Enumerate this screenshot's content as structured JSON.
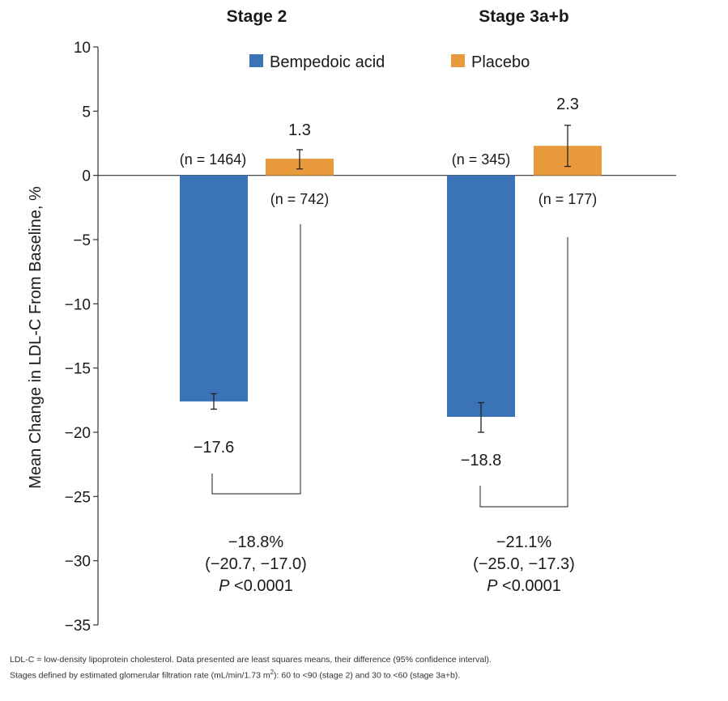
{
  "chart_data": {
    "type": "bar",
    "ylabel": "Mean Change in LDL-C From Baseline, %",
    "ylim": [
      -35,
      10
    ],
    "yticks": [
      10,
      5,
      0,
      -5,
      -10,
      -15,
      -20,
      -25,
      -30,
      -35
    ],
    "ytick_labels": [
      "10",
      "5",
      "0",
      "−5",
      "−10",
      "−15",
      "−20",
      "−25",
      "−30",
      "−35"
    ],
    "grid": false,
    "legend": {
      "placement": "top",
      "entries": [
        {
          "name": "Bempedoic acid",
          "color": "#3a74b6"
        },
        {
          "name": "Placebo",
          "color": "#e89a3c"
        }
      ]
    },
    "groups": [
      {
        "title": "Stage 2",
        "bars": [
          {
            "series": "Bempedoic acid",
            "value": -17.6,
            "ci": [
              -18.2,
              -17.0
            ],
            "label": "−17.6",
            "n_label": "(n = 1464)"
          },
          {
            "series": "Placebo",
            "value": 1.3,
            "ci": [
              0.5,
              2.0
            ],
            "label": "1.3",
            "n_label": "(n = 742)"
          }
        ],
        "difference": {
          "pct": "−18.8%",
          "ci": "(−20.7, −17.0)",
          "p_letter": "P",
          "p_value": " <0.0001"
        }
      },
      {
        "title": "Stage 3a+b",
        "bars": [
          {
            "series": "Bempedoic acid",
            "value": -18.8,
            "ci": [
              -20.0,
              -17.7
            ],
            "label": "−18.8",
            "n_label": "(n = 345)"
          },
          {
            "series": "Placebo",
            "value": 2.3,
            "ci": [
              0.7,
              3.9
            ],
            "label": "2.3",
            "n_label": "(n = 177)"
          }
        ],
        "difference": {
          "pct": "−21.1%",
          "ci": "(−25.0, −17.3)",
          "p_letter": "P",
          "p_value": " <0.0001"
        }
      }
    ]
  },
  "footnotes": {
    "line1": "LDL-C = low-density lipoprotein cholesterol. Data presented are least squares means, their difference (95% confidence interval).",
    "line2_before_sup": "Stages defined by estimated glomerular filtration rate (mL/min/1.73 m",
    "line2_sup": "2",
    "line2_after_sup": "): 60 to <90 (stage 2) and 30 to <60 (stage 3a+b)."
  }
}
